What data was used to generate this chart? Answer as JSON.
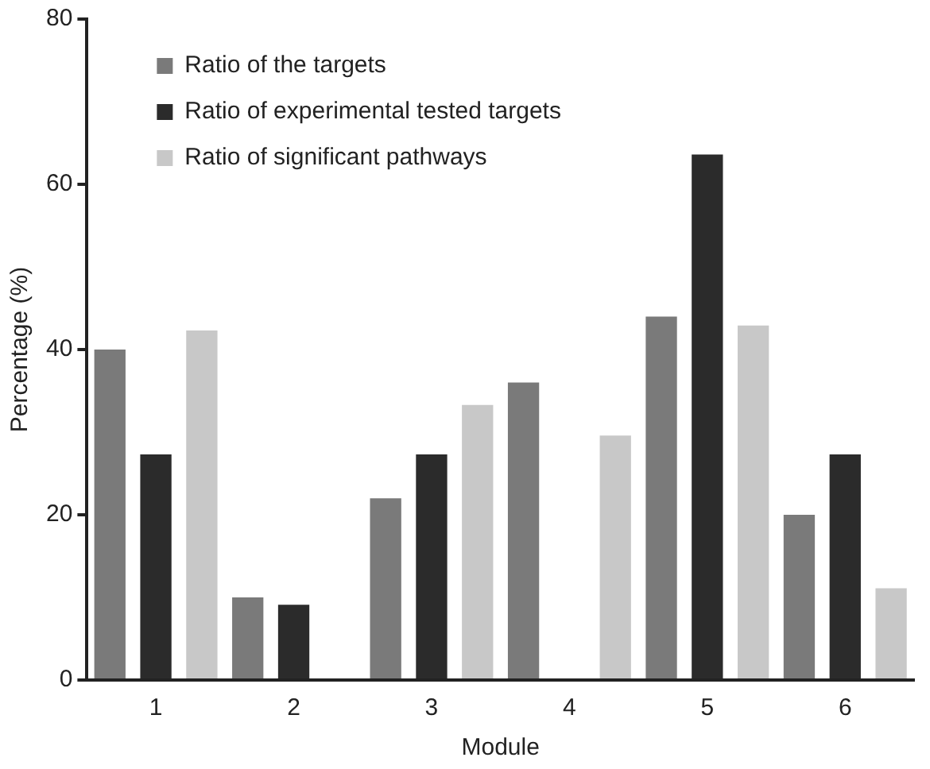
{
  "chart_data": {
    "type": "bar",
    "xlabel": "Module",
    "ylabel": "Percentage (%)",
    "categories": [
      "1",
      "2",
      "3",
      "4",
      "5",
      "6"
    ],
    "series": [
      {
        "name": "Ratio of the targets",
        "color": "#7a7a7a",
        "values": [
          40,
          10,
          22,
          36,
          44,
          20
        ]
      },
      {
        "name": "Ratio of experimental tested targets",
        "color": "#2b2b2b",
        "values": [
          27.3,
          9.1,
          27.3,
          0,
          63.6,
          27.3
        ]
      },
      {
        "name": "Ratio of significant pathways",
        "color": "#c8c8c8",
        "values": [
          42.3,
          null,
          33.3,
          29.6,
          42.9,
          11.1
        ]
      }
    ],
    "ylim": [
      0,
      80
    ],
    "yticks": [
      0,
      20,
      40,
      60,
      80
    ],
    "grid": false,
    "legend": "top left"
  }
}
